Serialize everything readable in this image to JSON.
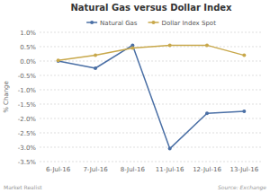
{
  "chart_data": {
    "type": "line",
    "title": "Natural Gas versus Dollar Index",
    "y_label": "% Change",
    "categories": [
      "6-Jul-16",
      "7-Jul-16",
      "8-Jul-16",
      "11-Jul-16",
      "12-Jul-16",
      "13-Jul-16"
    ],
    "series": [
      {
        "name": "Natural Gas",
        "color": "#4a6fa5",
        "values": [
          0.0,
          -0.25,
          0.55,
          -3.05,
          -1.82,
          -1.75
        ]
      },
      {
        "name": "Dollar Index Spot",
        "color": "#c8a84b",
        "values": [
          0.02,
          0.2,
          0.45,
          0.55,
          0.55,
          0.2
        ]
      }
    ],
    "ylim": [
      -3.5,
      1.0
    ],
    "yticks": [
      {
        "value": 1.0,
        "label": "1.0%"
      },
      {
        "value": 0.5,
        "label": "0.5%"
      },
      {
        "value": 0.0,
        "label": "0.0%"
      },
      {
        "value": -0.5,
        "label": "-0.5%"
      },
      {
        "value": -1.0,
        "label": "-1.0%"
      },
      {
        "value": -1.5,
        "label": "-1.5%"
      },
      {
        "value": -2.0,
        "label": "-2.0%"
      },
      {
        "value": -2.5,
        "label": "-2.5%"
      },
      {
        "value": -3.0,
        "label": "-3.0%"
      },
      {
        "value": -3.5,
        "label": "-3.5%"
      }
    ],
    "grid": true,
    "legend": "top",
    "marker": "circle",
    "annotations": [
      {
        "text": "Market Realist"
      },
      {
        "text": "Source: Exchange"
      }
    ]
  }
}
